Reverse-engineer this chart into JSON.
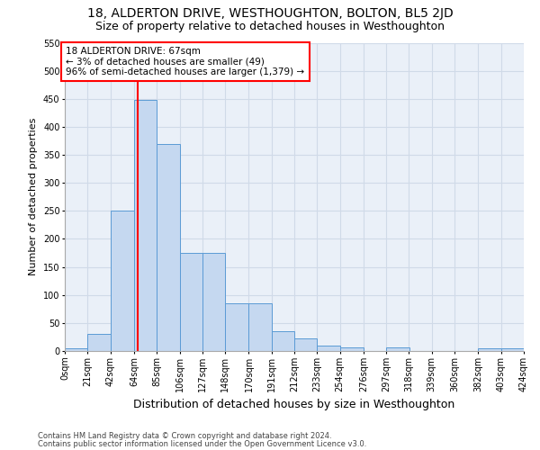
{
  "title": "18, ALDERTON DRIVE, WESTHOUGHTON, BOLTON, BL5 2JD",
  "subtitle": "Size of property relative to detached houses in Westhoughton",
  "xlabel": "Distribution of detached houses by size in Westhoughton",
  "ylabel": "Number of detached properties",
  "annotation_lines": [
    "18 ALDERTON DRIVE: 67sqm",
    "← 3% of detached houses are smaller (49)",
    "96% of semi-detached houses are larger (1,379) →"
  ],
  "footer1": "Contains HM Land Registry data © Crown copyright and database right 2024.",
  "footer2": "Contains public sector information licensed under the Open Government Licence v3.0.",
  "bin_edges": [
    0,
    21,
    42,
    64,
    85,
    106,
    127,
    148,
    170,
    191,
    212,
    233,
    254,
    276,
    297,
    318,
    339,
    360,
    382,
    403,
    424
  ],
  "bar_values": [
    5,
    30,
    250,
    448,
    370,
    175,
    175,
    85,
    85,
    35,
    22,
    10,
    6,
    0,
    6,
    0,
    0,
    0,
    5,
    5
  ],
  "bar_color": "#c5d8f0",
  "bar_edge_color": "#5b9bd5",
  "vline_x": 67,
  "vline_color": "red",
  "ylim": [
    0,
    550
  ],
  "tick_labels": [
    "0sqm",
    "21sqm",
    "42sqm",
    "64sqm",
    "85sqm",
    "106sqm",
    "127sqm",
    "148sqm",
    "170sqm",
    "191sqm",
    "212sqm",
    "233sqm",
    "254sqm",
    "276sqm",
    "297sqm",
    "318sqm",
    "339sqm",
    "360sqm",
    "382sqm",
    "403sqm",
    "424sqm"
  ],
  "bg_color": "#eaf0f8",
  "grid_color": "#d0dae8",
  "title_fontsize": 10,
  "subtitle_fontsize": 9,
  "xlabel_fontsize": 9,
  "ylabel_fontsize": 8,
  "tick_fontsize": 7,
  "annotation_fontsize": 7.5,
  "footer_fontsize": 6
}
